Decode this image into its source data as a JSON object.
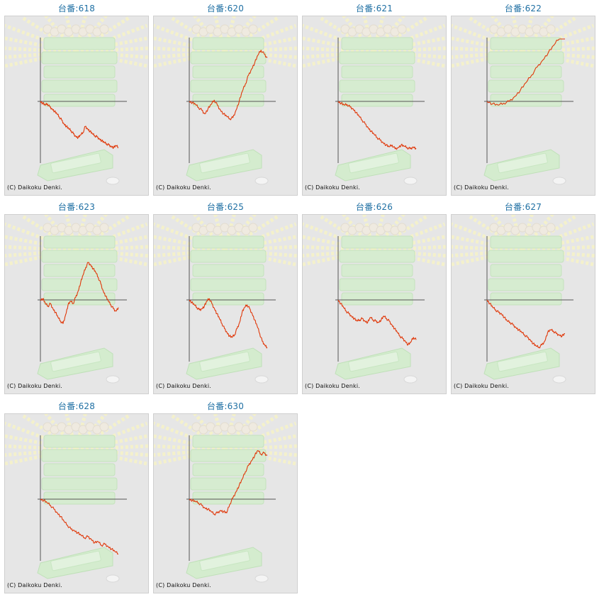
{
  "copyright": "(C) Daikoku Denki.",
  "colors": {
    "line": "#e0380a",
    "axis": "#555555",
    "title": "#1e6fa3",
    "panel_bg": "#e6e6e6"
  },
  "chart_data": [
    {
      "type": "line",
      "title": "台番:618",
      "values": [
        0,
        -3,
        -6,
        -4,
        -9,
        -12,
        -16,
        -20,
        -25,
        -30,
        -36,
        -40,
        -44,
        -47,
        -52,
        -56,
        -58,
        -54,
        -50,
        -40,
        -44,
        -48,
        -52,
        -55,
        -57,
        -60,
        -63,
        -66,
        -68,
        -70,
        -72,
        -74,
        -71,
        -74
      ]
    },
    {
      "type": "line",
      "title": "台番:620",
      "values": [
        0,
        -2,
        -5,
        -10,
        -14,
        -20,
        -12,
        -5,
        2,
        -6,
        -14,
        -20,
        -24,
        -28,
        -26,
        -14,
        0,
        16,
        28,
        42,
        52,
        62,
        74,
        82,
        76,
        70
      ]
    },
    {
      "type": "line",
      "title": "台番:621",
      "values": [
        0,
        -3,
        -6,
        -5,
        -9,
        -12,
        -18,
        -24,
        -30,
        -36,
        -42,
        -48,
        -53,
        -58,
        -62,
        -66,
        -70,
        -73,
        -70,
        -76,
        -74,
        -70,
        -72,
        -74,
        -76,
        -73,
        -75
      ]
    },
    {
      "type": "line",
      "title": "台番:622",
      "values": [
        0,
        -4,
        -6,
        -3,
        0,
        8,
        18,
        30,
        42,
        55,
        66,
        78,
        90,
        102,
        114
      ]
    },
    {
      "type": "line",
      "title": "台番:623",
      "values": [
        0,
        2,
        -6,
        -10,
        -6,
        -14,
        -20,
        -28,
        -34,
        -38,
        -24,
        -8,
        -2,
        -6,
        4,
        14,
        28,
        40,
        52,
        60,
        56,
        50,
        44,
        36,
        26,
        14,
        6,
        -2,
        -8,
        -14,
        -18,
        -12
      ]
    },
    {
      "type": "line",
      "title": "台番:625",
      "values": [
        0,
        -4,
        -8,
        -12,
        -16,
        -14,
        -10,
        -2,
        2,
        -6,
        -14,
        -22,
        -30,
        -38,
        -46,
        -52,
        -58,
        -60,
        -56,
        -46,
        -36,
        -20,
        -12,
        -8,
        -14,
        -22,
        -32,
        -42,
        -54,
        -66,
        -72,
        -76
      ]
    },
    {
      "type": "line",
      "title": "台番:626",
      "values": [
        0,
        -6,
        -12,
        -18,
        -22,
        -26,
        -30,
        -34,
        -32,
        -30,
        -34,
        -36,
        -28,
        -32,
        -34,
        -36,
        -32,
        -26,
        -30,
        -34,
        -40,
        -46,
        -52,
        -58,
        -62,
        -66,
        -72,
        -68,
        -60,
        -64
      ]
    },
    {
      "type": "line",
      "title": "台番:627",
      "values": [
        0,
        -6,
        -12,
        -16,
        -20,
        -22,
        -28,
        -34,
        -36,
        -40,
        -44,
        -48,
        -52,
        -56,
        -60,
        -64,
        -70,
        -74,
        -76,
        -72,
        -66,
        -52,
        -48,
        -50,
        -54,
        -56,
        -58,
        -54
      ]
    },
    {
      "type": "line",
      "title": "台番:628",
      "values": [
        0,
        -2,
        -6,
        -10,
        -16,
        -22,
        -28,
        -36,
        -42,
        -48,
        -50,
        -54,
        -58,
        -62,
        -60,
        -64,
        -70,
        -68,
        -74,
        -72,
        -76,
        -80,
        -84,
        -88
      ]
    },
    {
      "type": "line",
      "title": "台番:630",
      "values": [
        0,
        -2,
        -4,
        -6,
        -10,
        -14,
        -16,
        -20,
        -24,
        -22,
        -18,
        -20,
        -22,
        -8,
        2,
        12,
        22,
        32,
        44,
        54,
        62,
        70,
        78,
        72,
        74,
        70
      ]
    }
  ]
}
